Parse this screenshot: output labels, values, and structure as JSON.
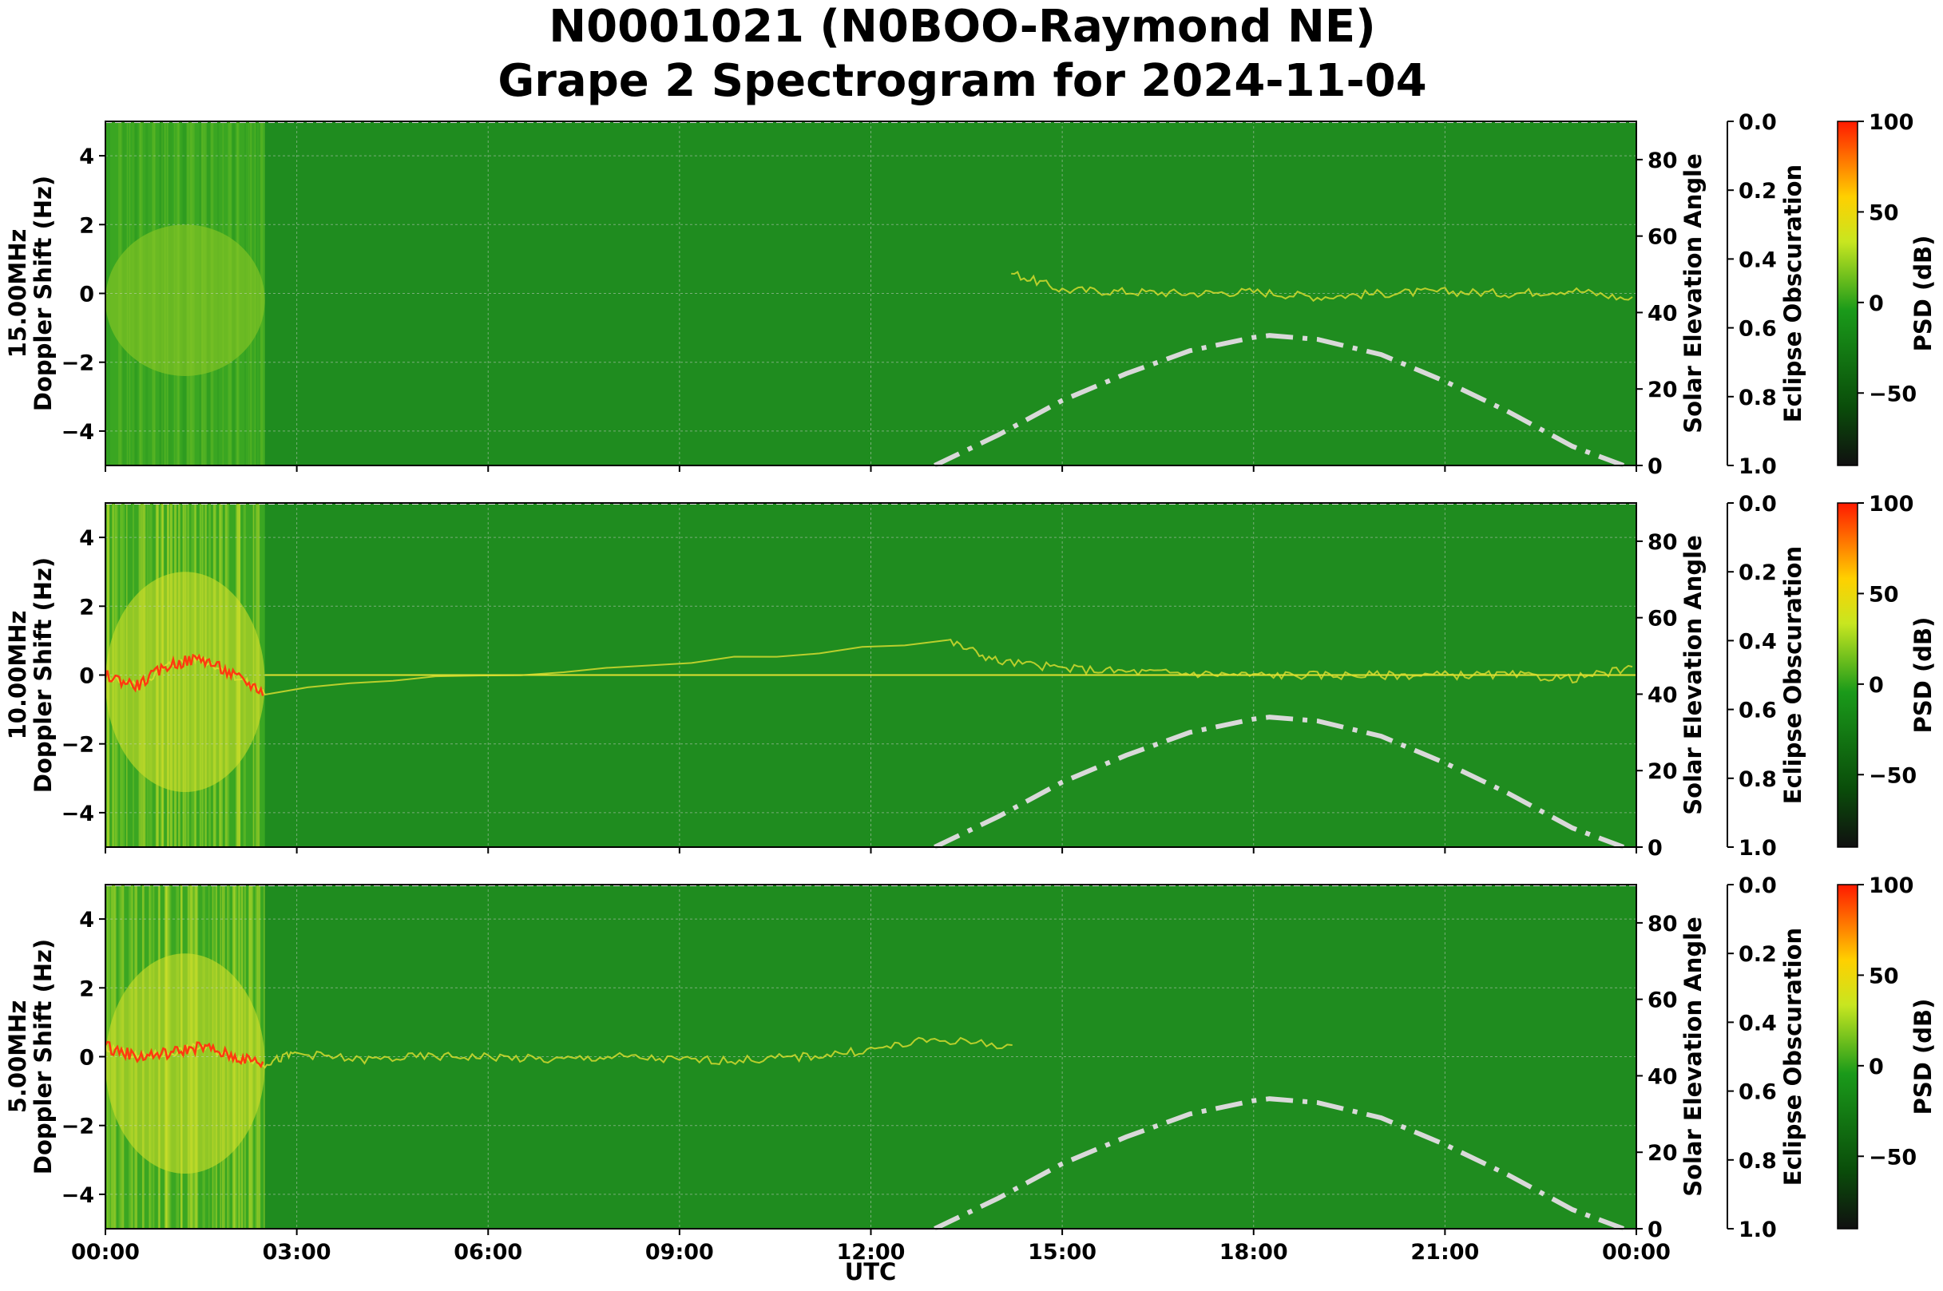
{
  "title_line1": "N0001021 (N0BOO-Raymond NE)",
  "title_line2": "Grape 2 Spectrogram for 2024-11-04",
  "xlabel": "UTC",
  "x_ticks": [
    "00:00",
    "03:00",
    "06:00",
    "09:00",
    "12:00",
    "15:00",
    "18:00",
    "21:00",
    "00:00"
  ],
  "doppler_ticks": [
    "4",
    "2",
    "0",
    "−2",
    "−4"
  ],
  "elevation_ticks": [
    "80",
    "60",
    "40",
    "20",
    "0"
  ],
  "eclipse_ticks": [
    "0.0",
    "0.2",
    "0.4",
    "0.6",
    "0.8",
    "1.0"
  ],
  "psd_ticks": [
    "100",
    "50",
    "0",
    "−50"
  ],
  "panels": [
    {
      "freq_label": "15.00MHz",
      "ylabel": "Doppler Shift (Hz)",
      "y2label": "Solar Elevation Angle",
      "y3label": "Eclipse Obscuration",
      "cbar_label": "PSD (dB)"
    },
    {
      "freq_label": "10.00MHz",
      "ylabel": "Doppler Shift (Hz)",
      "y2label": "Solar Elevation Angle",
      "y3label": "Eclipse Obscuration",
      "cbar_label": "PSD (dB)"
    },
    {
      "freq_label": "5.00MHz",
      "ylabel": "Doppler Shift (Hz)",
      "y2label": "Solar Elevation Angle",
      "y3label": "Eclipse Obscuration",
      "cbar_label": "PSD (dB)"
    }
  ],
  "colors": {
    "background_green": "#1f8c1f",
    "noisy_green": "#3aa622",
    "trace_yellow": "#e0e030",
    "trace_red": "#ff3a10",
    "elevation_curve": "#d9d9d9",
    "colorbar": [
      "#101010",
      "#0a4d0a",
      "#1a9a1a",
      "#c8e620",
      "#ffd000",
      "#ff1a00"
    ]
  },
  "chart_data": [
    {
      "type": "heatmap",
      "title": "N0001021 (N0BOO-Raymond NE) Grape 2 Spectrogram for 2024-11-04",
      "panel": "15.00MHz",
      "xlabel": "UTC",
      "ylabel": "Doppler Shift (Hz)",
      "xlim": [
        "00:00",
        "24:00"
      ],
      "ylim": [
        -5,
        5
      ],
      "y2label": "Solar Elevation Angle",
      "y2lim": [
        0,
        90
      ],
      "y3label": "Eclipse Obscuration",
      "y3lim": [
        1.0,
        0.0
      ],
      "colorbar": {
        "label": "PSD (dB)",
        "range": [
          -90,
          100
        ]
      },
      "high_noise_interval_hours": [
        0,
        2.5
      ],
      "doppler_trace": {
        "hours": [
          14.2,
          15,
          16,
          17,
          18,
          19,
          20,
          21,
          22,
          23,
          24
        ],
        "hz": [
          0.6,
          0.1,
          0.05,
          0.0,
          0.05,
          -0.1,
          0.0,
          0.05,
          0.0,
          0.1,
          -0.2
        ]
      },
      "solar_elevation": {
        "hours": [
          13.0,
          14,
          15,
          16,
          17,
          18,
          18.25,
          19,
          20,
          21,
          22,
          23,
          23.8
        ],
        "deg": [
          0,
          8,
          17,
          24,
          30,
          33.5,
          34,
          33,
          29,
          22,
          14,
          5,
          0
        ]
      },
      "grid": true
    },
    {
      "type": "heatmap",
      "panel": "10.00MHz",
      "xlabel": "UTC",
      "ylabel": "Doppler Shift (Hz)",
      "xlim": [
        "00:00",
        "24:00"
      ],
      "ylim": [
        -5,
        5
      ],
      "y2label": "Solar Elevation Angle",
      "y2lim": [
        0,
        90
      ],
      "y3label": "Eclipse Obscuration",
      "y3lim": [
        1.0,
        0.0
      ],
      "colorbar": {
        "label": "PSD (dB)",
        "range": [
          -90,
          100
        ]
      },
      "high_noise_interval_hours": [
        0,
        2.5
      ],
      "carrier_line_hz": 0,
      "doppler_trace": {
        "hours": [
          0,
          0.5,
          1.0,
          1.5,
          2.0,
          2.5,
          13.2,
          14,
          15,
          16,
          17,
          18,
          19,
          20,
          21,
          22,
          23,
          24
        ],
        "hz": [
          0.0,
          -0.3,
          0.3,
          0.5,
          0.0,
          -0.5,
          1.0,
          0.4,
          0.2,
          0.1,
          0.05,
          0.0,
          0.0,
          0.0,
          0.0,
          0.0,
          -0.1,
          0.2
        ]
      },
      "solar_elevation": {
        "hours": [
          13.0,
          14,
          15,
          16,
          17,
          18,
          18.25,
          19,
          20,
          21,
          22,
          23,
          23.8
        ],
        "deg": [
          0,
          8,
          17,
          24,
          30,
          33.5,
          34,
          33,
          29,
          22,
          14,
          5,
          0
        ]
      },
      "grid": true
    },
    {
      "type": "heatmap",
      "panel": "5.00MHz",
      "xlabel": "UTC",
      "ylabel": "Doppler Shift (Hz)",
      "xlim": [
        "00:00",
        "24:00"
      ],
      "ylim": [
        -5,
        5
      ],
      "y2label": "Solar Elevation Angle",
      "y2lim": [
        0,
        90
      ],
      "y3label": "Eclipse Obscuration",
      "y3lim": [
        1.0,
        0.0
      ],
      "colorbar": {
        "label": "PSD (dB)",
        "range": [
          -90,
          100
        ]
      },
      "high_noise_interval_hours": [
        0,
        2.5
      ],
      "doppler_trace": {
        "hours": [
          0,
          0.5,
          1.0,
          1.5,
          2.0,
          2.5,
          3,
          4,
          5,
          6,
          7,
          8,
          9,
          10,
          11,
          12,
          13,
          14.3
        ],
        "hz": [
          0.3,
          0.0,
          0.1,
          0.3,
          0.0,
          -0.2,
          0.1,
          -0.1,
          0.0,
          0.0,
          -0.1,
          0.0,
          -0.1,
          -0.1,
          0.0,
          0.2,
          0.5,
          0.3
        ]
      },
      "solar_elevation": {
        "hours": [
          13.0,
          14,
          15,
          16,
          17,
          18,
          18.25,
          19,
          20,
          21,
          22,
          23,
          23.8
        ],
        "deg": [
          0,
          8,
          17,
          24,
          30,
          33.5,
          34,
          33,
          29,
          22,
          14,
          5,
          0
        ]
      },
      "grid": true
    }
  ]
}
